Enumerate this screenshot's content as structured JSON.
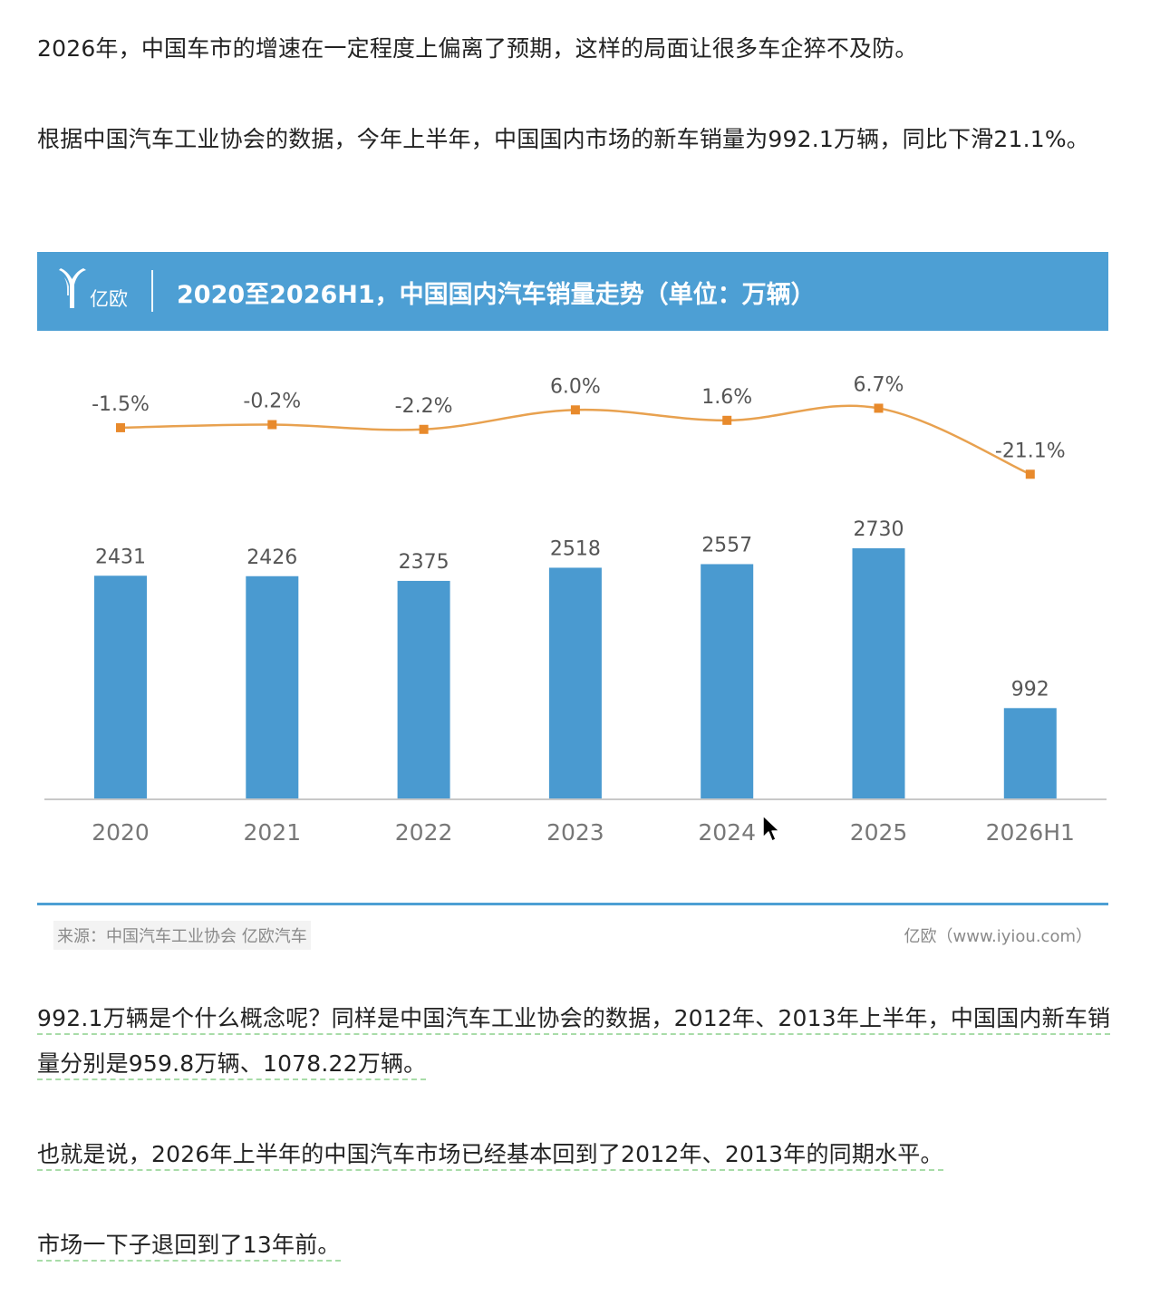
{
  "article": {
    "p1": "2026年，中国车市的增速在一定程度上偏离了预期，这样的局面让很多车企猝不及防。",
    "p2": "根据中国汽车工业协会的数据，今年上半年，中国国内市场的新车销量为992.1万辆，同比下滑21.1%。",
    "p3": "992.1万辆是个什么概念呢？同样是中国汽车工业协会的数据，2012年、2013年上半年，中国国内新车销量分别是959.8万辆、1078.22万辆。",
    "p4": "也就是说，2026年上半年的中国汽车市场已经基本回到了2012年、2013年的同期水平。",
    "p5": "市场一下子退回到了13年前。"
  },
  "chart_header": {
    "brand": "亿欧",
    "title": "2020至2026H1，中国国内汽车销量走势（单位：万辆）"
  },
  "chart_footer": {
    "source": "来源：中国汽车工业协会 亿欧汽车",
    "site": "亿欧（www.iyiou.com）"
  },
  "colors": {
    "header_bg": "#4d9fd4",
    "bar": "#4a9ad0",
    "line": "#e8a14f",
    "marker": "#e88a2c",
    "underline": "#a8dca8"
  },
  "chart_data": {
    "type": "bar",
    "categories": [
      "2020",
      "2021",
      "2022",
      "2023",
      "2024",
      "2025",
      "2026H1"
    ],
    "series": [
      {
        "type": "bar",
        "values": [
          2431,
          2426,
          2375,
          2518,
          2557,
          2730,
          992
        ]
      },
      {
        "type": "line",
        "values": [
          -1.5,
          -0.2,
          -2.2,
          6.0,
          1.6,
          6.7,
          -21.1
        ],
        "labels": [
          "-1.5%",
          "-0.2%",
          "-2.2%",
          "6.0%",
          "1.6%",
          "6.7%",
          "-21.1%"
        ]
      }
    ],
    "ylim": [
      0,
      3000
    ],
    "grid": false,
    "legend": "none"
  }
}
